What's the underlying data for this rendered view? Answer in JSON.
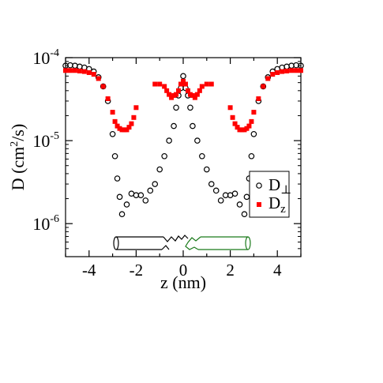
{
  "chart_data": {
    "type": "scatter",
    "title": "",
    "xlabel": "z (nm)",
    "ylabel_main": "D (cm",
    "ylabel_sup": "2",
    "ylabel_tail": "/s)",
    "xlim": [
      -5,
      5
    ],
    "ylim": [
      4e-07,
      0.0001
    ],
    "y_scale": "log",
    "x_ticks": [
      -4,
      -2,
      0,
      2,
      4
    ],
    "x_tick_labels": [
      "-4",
      "-2",
      "0",
      "2",
      "4"
    ],
    "y_ticks": [
      {
        "value": 1e-06,
        "base": "10",
        "exp": "-6"
      },
      {
        "value": 1e-05,
        "base": "10",
        "exp": "-5"
      },
      {
        "value": 0.0001,
        "base": "10",
        "exp": "-4"
      }
    ],
    "grid": false,
    "legend_position": "right",
    "series": [
      {
        "name_main": "D",
        "name_sub": "⊥",
        "marker": "open-circle",
        "color": "#000000",
        "points": [
          [
            -5.0,
            8e-05
          ],
          [
            -4.8,
            8.1e-05
          ],
          [
            -4.6,
            8e-05
          ],
          [
            -4.4,
            7.8e-05
          ],
          [
            -4.2,
            7.6e-05
          ],
          [
            -4.0,
            7.3e-05
          ],
          [
            -3.8,
            6.8e-05
          ],
          [
            -3.6,
            5.8e-05
          ],
          [
            -3.4,
            4.5e-05
          ],
          [
            -3.2,
            3e-05
          ],
          [
            -3.0,
            1.2e-05
          ],
          [
            -2.9,
            6.5e-06
          ],
          [
            -2.8,
            3.5e-06
          ],
          [
            -2.7,
            2.1e-06
          ],
          [
            -2.6,
            1.3e-06
          ],
          [
            -2.4,
            1.7e-06
          ],
          [
            -2.2,
            2.3e-06
          ],
          [
            -2.0,
            2.2e-06
          ],
          [
            -1.8,
            2.2e-06
          ],
          [
            -1.6,
            1.9e-06
          ],
          [
            -1.4,
            2.5e-06
          ],
          [
            -1.2,
            3e-06
          ],
          [
            -1.0,
            4.5e-06
          ],
          [
            -0.8,
            6.5e-06
          ],
          [
            -0.6,
            1e-05
          ],
          [
            -0.4,
            1.5e-05
          ],
          [
            -0.3,
            2.5e-05
          ],
          [
            -0.2,
            3.5e-05
          ],
          [
            -0.1,
            4.3e-05
          ],
          [
            0.0,
            6e-05
          ],
          [
            0.1,
            4.3e-05
          ],
          [
            0.2,
            3.5e-05
          ],
          [
            0.3,
            2.5e-05
          ],
          [
            0.4,
            1.5e-05
          ],
          [
            0.6,
            1e-05
          ],
          [
            0.8,
            6.5e-06
          ],
          [
            1.0,
            4.5e-06
          ],
          [
            1.2,
            3e-06
          ],
          [
            1.4,
            2.5e-06
          ],
          [
            1.6,
            1.9e-06
          ],
          [
            1.8,
            2.2e-06
          ],
          [
            2.0,
            2.2e-06
          ],
          [
            2.2,
            2.3e-06
          ],
          [
            2.4,
            1.7e-06
          ],
          [
            2.6,
            1.3e-06
          ],
          [
            2.7,
            2.1e-06
          ],
          [
            2.8,
            3.5e-06
          ],
          [
            2.9,
            6.5e-06
          ],
          [
            3.0,
            1.2e-05
          ],
          [
            3.2,
            3e-05
          ],
          [
            3.4,
            4.5e-05
          ],
          [
            3.6,
            5.8e-05
          ],
          [
            3.8,
            6.8e-05
          ],
          [
            4.0,
            7.3e-05
          ],
          [
            4.2,
            7.6e-05
          ],
          [
            4.4,
            7.8e-05
          ],
          [
            4.6,
            8e-05
          ],
          [
            4.8,
            8.1e-05
          ],
          [
            5.0,
            8e-05
          ]
        ]
      },
      {
        "name_main": "D",
        "name_sub": "z",
        "marker": "filled-square",
        "color": "#ff0000",
        "points": [
          [
            -5.0,
            7e-05
          ],
          [
            -4.8,
            7e-05
          ],
          [
            -4.6,
            7e-05
          ],
          [
            -4.4,
            6.9e-05
          ],
          [
            -4.2,
            6.8e-05
          ],
          [
            -4.0,
            6.6e-05
          ],
          [
            -3.8,
            6.3e-05
          ],
          [
            -3.6,
            5.6e-05
          ],
          [
            -3.4,
            4.5e-05
          ],
          [
            -3.2,
            3.2e-05
          ],
          [
            -3.0,
            2.2e-05
          ],
          [
            -2.9,
            1.7e-05
          ],
          [
            -2.8,
            1.5e-05
          ],
          [
            -2.7,
            1.4e-05
          ],
          [
            -2.6,
            1.35e-05
          ],
          [
            -2.5,
            1.35e-05
          ],
          [
            -2.4,
            1.35e-05
          ],
          [
            -2.3,
            1.45e-05
          ],
          [
            -2.2,
            1.6e-05
          ],
          [
            -2.1,
            1.9e-05
          ],
          [
            -2.0,
            2.5e-05
          ],
          [
            -1.2,
            4.8e-05
          ],
          [
            -1.0,
            4.8e-05
          ],
          [
            -0.8,
            4.5e-05
          ],
          [
            -0.7,
            4e-05
          ],
          [
            -0.6,
            3.6e-05
          ],
          [
            -0.5,
            3.3e-05
          ],
          [
            -0.4,
            3.5e-05
          ],
          [
            -0.3,
            3.6e-05
          ],
          [
            -0.2,
            4e-05
          ],
          [
            -0.1,
            4.8e-05
          ],
          [
            0.0,
            5.2e-05
          ],
          [
            0.1,
            4.8e-05
          ],
          [
            0.2,
            4e-05
          ],
          [
            0.3,
            3.6e-05
          ],
          [
            0.4,
            3.5e-05
          ],
          [
            0.5,
            3.3e-05
          ],
          [
            0.6,
            3.6e-05
          ],
          [
            0.7,
            4e-05
          ],
          [
            0.8,
            4.5e-05
          ],
          [
            1.0,
            4.8e-05
          ],
          [
            1.2,
            4.8e-05
          ],
          [
            2.0,
            2.5e-05
          ],
          [
            2.1,
            1.9e-05
          ],
          [
            2.2,
            1.6e-05
          ],
          [
            2.3,
            1.45e-05
          ],
          [
            2.4,
            1.35e-05
          ],
          [
            2.5,
            1.35e-05
          ],
          [
            2.6,
            1.35e-05
          ],
          [
            2.7,
            1.4e-05
          ],
          [
            2.8,
            1.5e-05
          ],
          [
            2.9,
            1.7e-05
          ],
          [
            3.0,
            2.2e-05
          ],
          [
            3.2,
            3.2e-05
          ],
          [
            3.4,
            4.5e-05
          ],
          [
            3.6,
            5.6e-05
          ],
          [
            3.8,
            6.3e-05
          ],
          [
            4.0,
            6.6e-05
          ],
          [
            4.2,
            6.8e-05
          ],
          [
            4.4,
            6.9e-05
          ],
          [
            4.6,
            7e-05
          ],
          [
            4.8,
            7e-05
          ],
          [
            5.0,
            7e-05
          ]
        ]
      }
    ]
  },
  "inset_colors": {
    "left_tube": "#000000",
    "right_tube": "#1a7a1a"
  }
}
